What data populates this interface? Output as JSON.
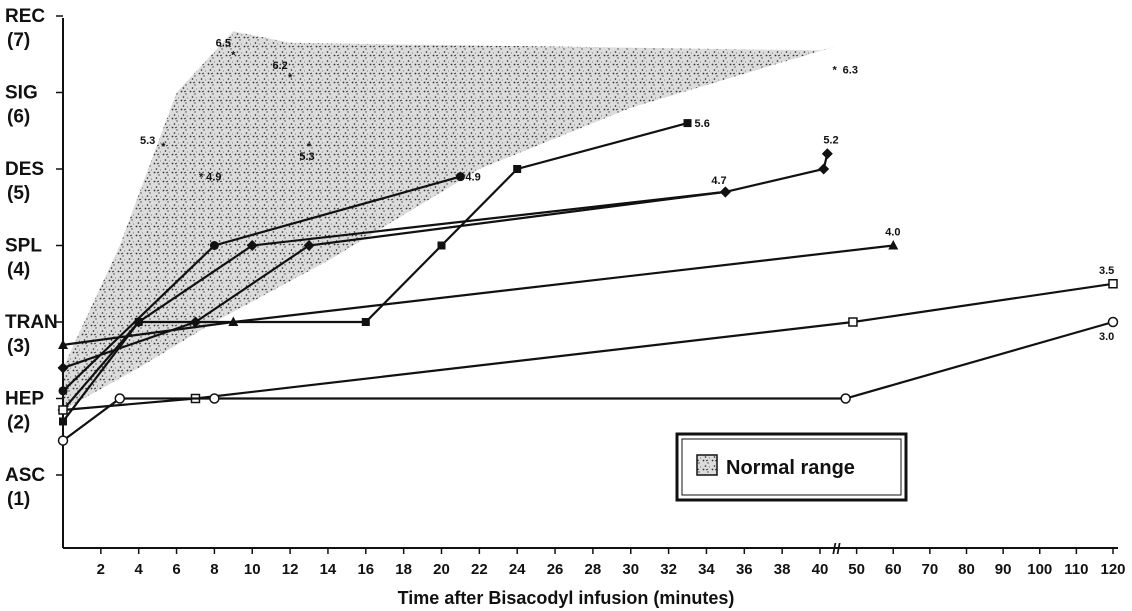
{
  "chart_data": {
    "type": "line",
    "xlabel": "Time after Bisacodyl infusion (minutes)",
    "y_categories": [
      {
        "value": 1,
        "name": "ASC",
        "num": "(1)"
      },
      {
        "value": 2,
        "name": "HEP",
        "num": "(2)"
      },
      {
        "value": 3,
        "name": "TRAN",
        "num": "(3)"
      },
      {
        "value": 4,
        "name": "SPL",
        "num": "(4)"
      },
      {
        "value": 5,
        "name": "DES",
        "num": "(5)"
      },
      {
        "value": 6,
        "name": "SIG",
        "num": "(6)"
      },
      {
        "value": 7,
        "name": "REC",
        "num": "(7)"
      }
    ],
    "x_ticks": [
      "2",
      "4",
      "6",
      "8",
      "10",
      "12",
      "14",
      "16",
      "18",
      "20",
      "22",
      "24",
      "26",
      "28",
      "30",
      "32",
      "34",
      "36",
      "38",
      "40",
      "50",
      "60",
      "70",
      "80",
      "90",
      "100",
      "110",
      "120"
    ],
    "axis_break": "//",
    "legend": {
      "label": "Normal range",
      "position": "bottom-right"
    },
    "normal_range": {
      "upper": [
        [
          0,
          2.4
        ],
        [
          3,
          4.0
        ],
        [
          6,
          6.0
        ],
        [
          9,
          6.8
        ],
        [
          12,
          6.65
        ],
        [
          40,
          6.55
        ],
        [
          44,
          6.6
        ]
      ],
      "lower": [
        [
          44,
          6.6
        ],
        [
          30,
          5.8
        ],
        [
          22,
          5.0
        ],
        [
          14,
          3.8
        ],
        [
          8,
          3.0
        ],
        [
          4,
          2.4
        ],
        [
          0,
          1.85
        ]
      ]
    },
    "series": [
      {
        "marker": "filled-square",
        "values": [
          [
            0,
            1.7
          ],
          [
            4,
            3.0
          ],
          [
            16,
            3.0
          ],
          [
            20,
            4.0
          ],
          [
            24,
            5.0
          ],
          [
            33,
            5.6
          ]
        ],
        "end_label": "5.6"
      },
      {
        "marker": "filled-diamond",
        "values": [
          [
            0,
            1.85
          ],
          [
            4,
            3.0
          ],
          [
            10,
            4.0
          ],
          [
            35,
            4.7
          ],
          [
            41,
            5.0
          ],
          [
            42,
            5.2
          ]
        ],
        "end_label": "5.2"
      },
      {
        "marker": "filled-circle",
        "values": [
          [
            0,
            2.1
          ],
          [
            8,
            4.0
          ],
          [
            21,
            4.9
          ]
        ],
        "end_label": "4.9"
      },
      {
        "marker": "filled-diamond",
        "values": [
          [
            0,
            2.4
          ],
          [
            7,
            3.0
          ],
          [
            13,
            4.0
          ],
          [
            35,
            4.7
          ]
        ],
        "end_label": "4.7"
      },
      {
        "marker": "filled-triangle",
        "values": [
          [
            0,
            2.7
          ],
          [
            9,
            3.0
          ],
          [
            60,
            4.0
          ]
        ],
        "end_label": "4.0"
      },
      {
        "marker": "open-square",
        "values": [
          [
            0,
            1.85
          ],
          [
            7,
            2.0
          ],
          [
            49,
            3.0
          ],
          [
            120,
            3.5
          ]
        ],
        "end_label": "3.5"
      },
      {
        "marker": "open-circle",
        "values": [
          [
            0,
            1.45
          ],
          [
            3,
            2.0
          ],
          [
            8,
            2.0
          ],
          [
            47,
            2.0
          ],
          [
            120,
            3.0
          ]
        ],
        "end_label": "3.0"
      }
    ],
    "range_points": [
      {
        "x": 9,
        "y": 6.5,
        "label": "6.5"
      },
      {
        "x": 12,
        "y": 6.2,
        "label": "6.2"
      },
      {
        "x": 44,
        "y": 6.3,
        "label": "6.3"
      },
      {
        "x": 5.3,
        "y": 5.3,
        "label": "5.3"
      },
      {
        "x": 13,
        "y": 5.3,
        "label": "5.3"
      },
      {
        "x": 7.3,
        "y": 4.9,
        "label": "4.9"
      }
    ]
  }
}
